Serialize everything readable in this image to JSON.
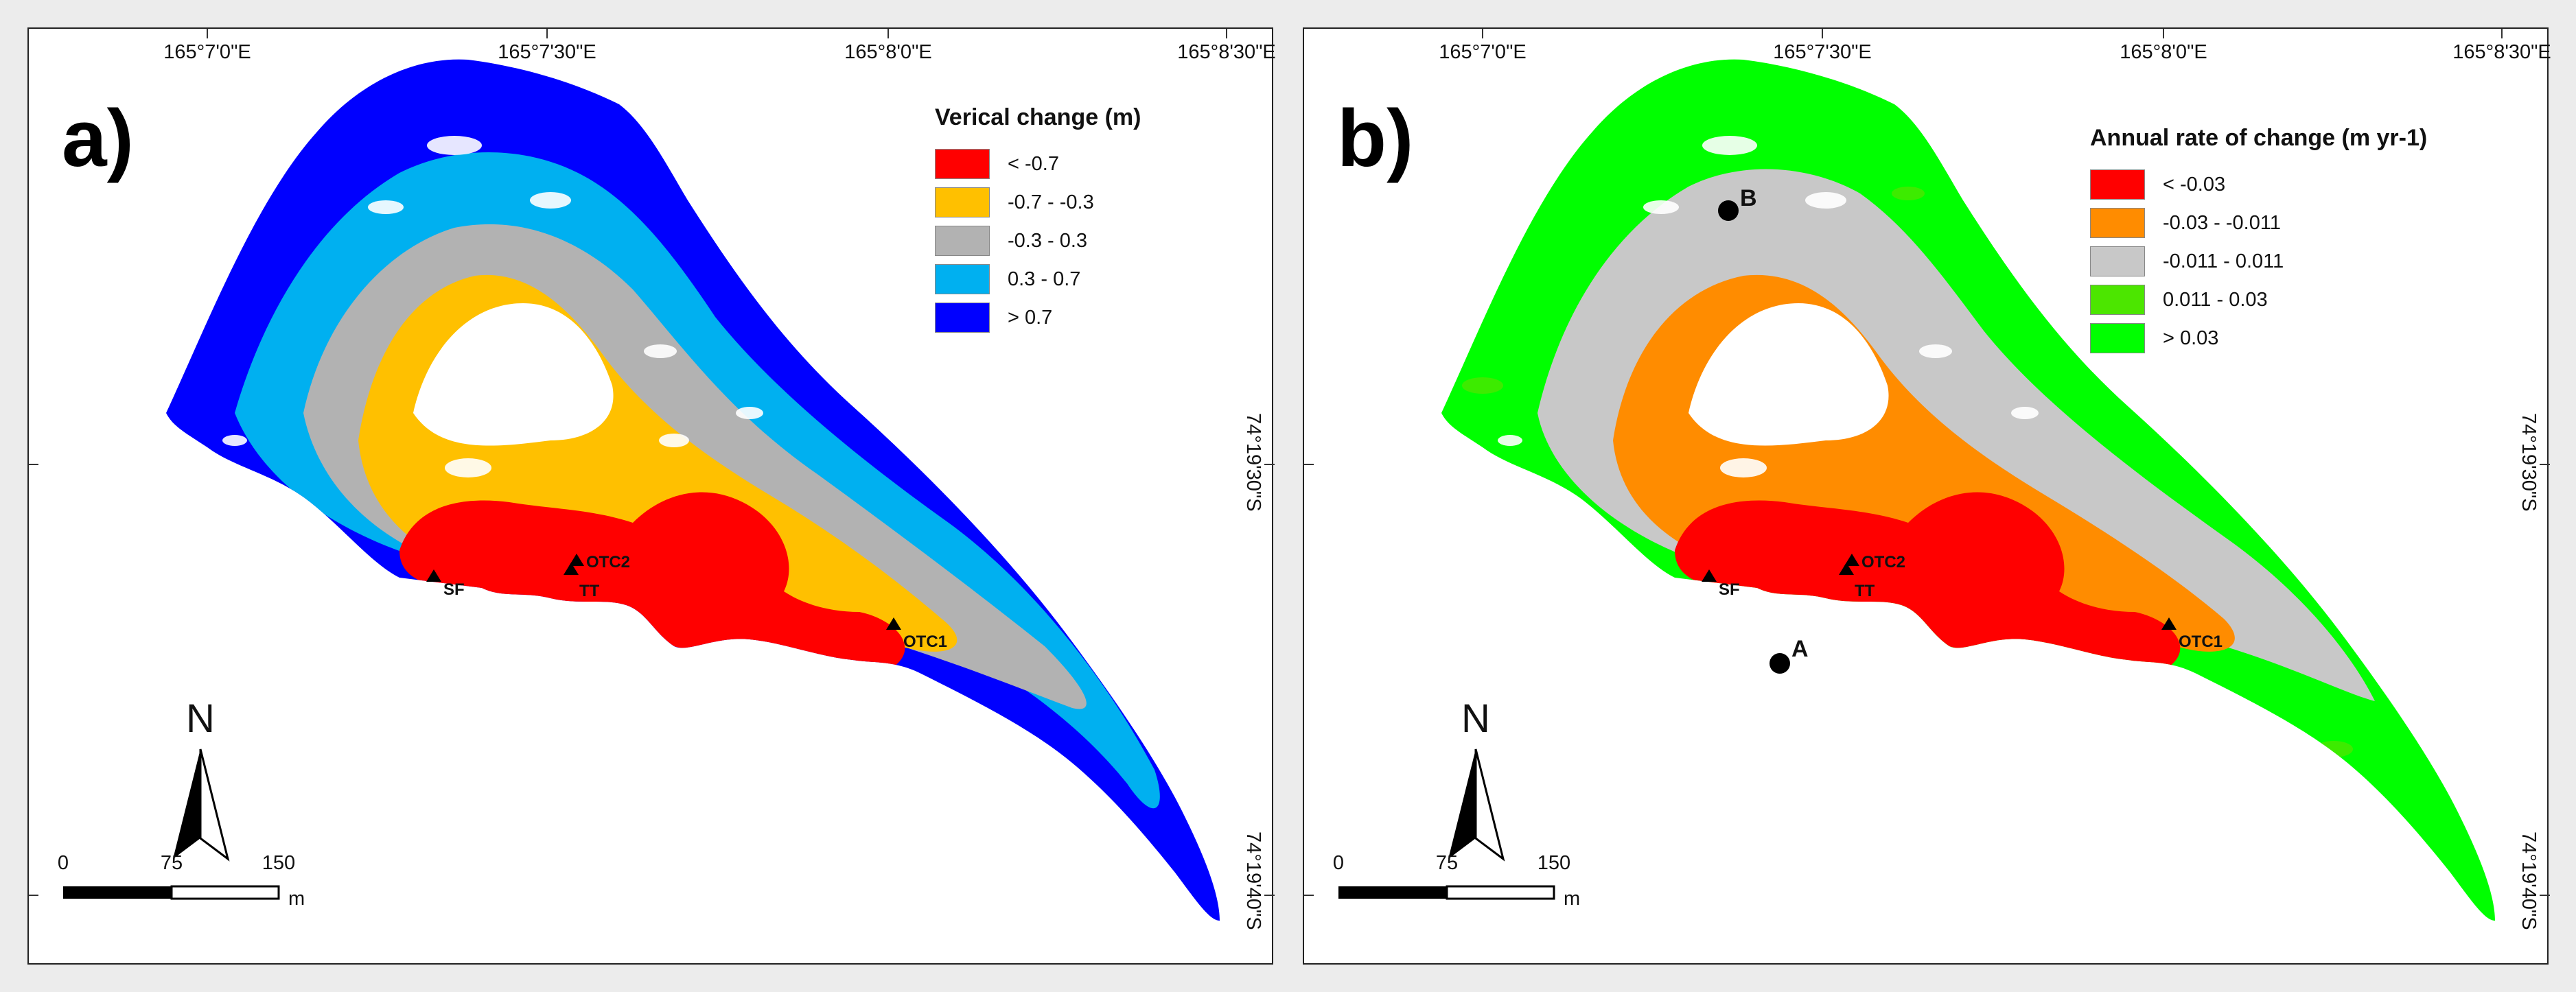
{
  "figure": {
    "longitude_ticks": [
      "165°7'0\"E",
      "165°7'30\"E",
      "165°8'0\"E",
      "165°8'30\"E"
    ],
    "latitude_ticks": [
      "74°19'30\"S",
      "74°19'40\"S"
    ],
    "sites": [
      "SF",
      "TT",
      "OTC2",
      "OTC1"
    ],
    "scale_bar": {
      "ticks": [
        "0",
        "75",
        "150"
      ],
      "unit": "m"
    },
    "north_label": "N"
  },
  "panel_a": {
    "letter": "a)",
    "legend_title": "Verical change (m)",
    "legend": [
      {
        "label": "< -0.7",
        "color": "#ff0000"
      },
      {
        "label": "-0.7 - -0.3",
        "color": "#ffc000"
      },
      {
        "label": "-0.3 - 0.3",
        "color": "#b2b2b2"
      },
      {
        "label": "0.3 - 0.7",
        "color": "#00b0f0"
      },
      {
        "label": "> 0.7",
        "color": "#0000ff"
      }
    ]
  },
  "panel_b": {
    "letter": "b)",
    "legend_title": "Annual rate of change (m yr-1)",
    "legend": [
      {
        "label": "< -0.03",
        "color": "#ff0000"
      },
      {
        "label": "-0.03 - -0.011",
        "color": "#ff8c00"
      },
      {
        "label": "-0.011 - 0.011",
        "color": "#c8c8c8"
      },
      {
        "label": "0.011 - 0.03",
        "color": "#4ce600"
      },
      {
        "label": "> 0.03",
        "color": "#00ff00"
      }
    ],
    "points": [
      "A",
      "B"
    ]
  }
}
